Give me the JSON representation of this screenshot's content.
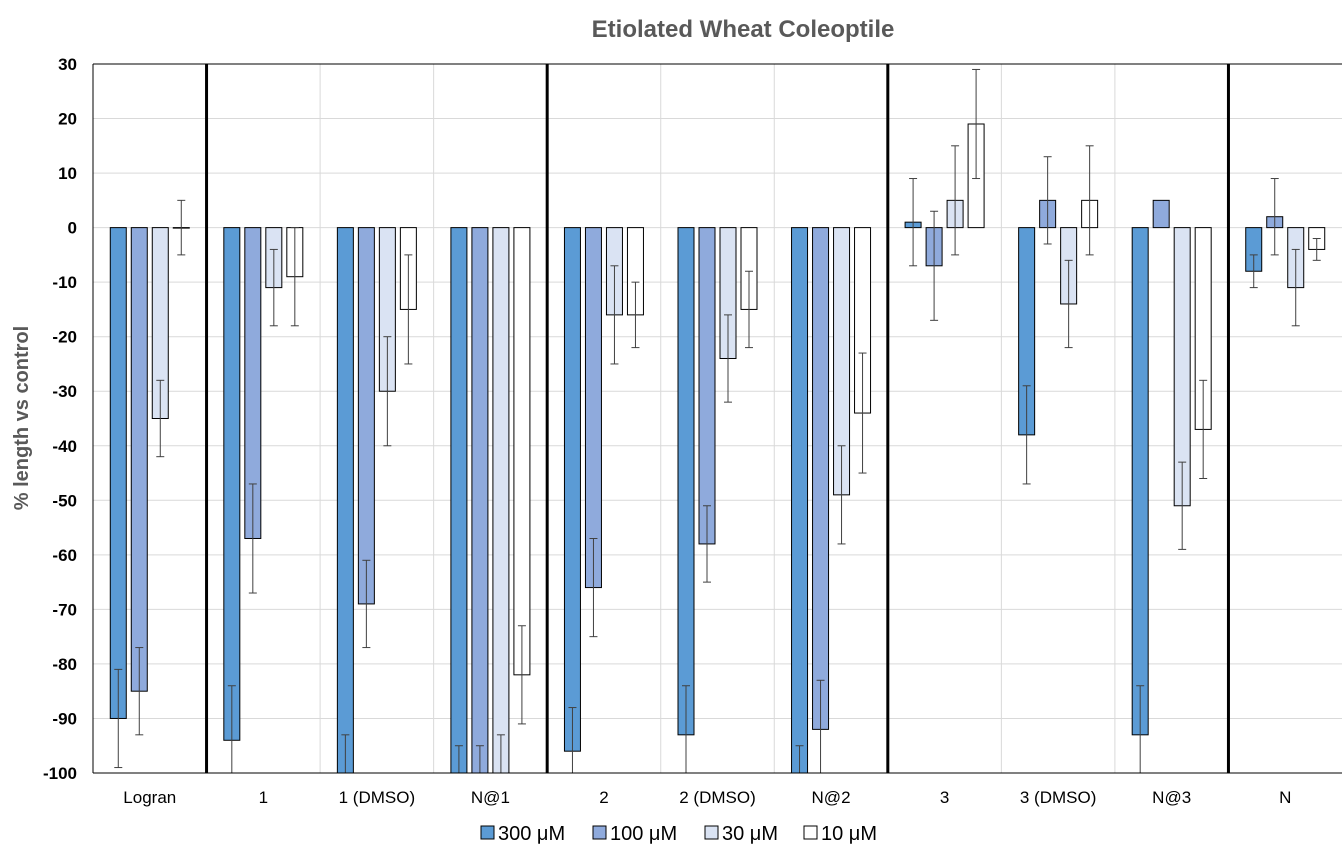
{
  "chart_data": {
    "type": "bar",
    "title": "Etiolated Wheat Coleoptile",
    "xlabel": "",
    "ylabel": "% length vs control",
    "ylim": [
      -100,
      30
    ],
    "yticks": [
      30,
      20,
      10,
      0,
      -10,
      -20,
      -30,
      -40,
      -50,
      -60,
      -70,
      -80,
      -90,
      -100
    ],
    "grid": true,
    "legend_position": "bottom",
    "categories": [
      "Logran",
      "1",
      "1 (DMSO)",
      "N@1",
      "2",
      "2 (DMSO)",
      "N@2",
      "3",
      "3 (DMSO)",
      "N@3",
      "N"
    ],
    "group_separators_after": [
      "Logran",
      "N@1",
      "N@2",
      "N@3"
    ],
    "series": [
      {
        "name": "300 μM",
        "color": "#5b9bd5",
        "values": [
          -90,
          -94,
          -100,
          -100,
          -96,
          -93,
          -100,
          1,
          -38,
          -93,
          -8
        ],
        "errors": [
          9,
          10,
          7,
          5,
          8,
          9,
          5,
          8,
          9,
          9,
          3
        ]
      },
      {
        "name": "100 μM",
        "color": "#8faadc",
        "values": [
          -85,
          -57,
          -69,
          -100,
          -66,
          -58,
          -92,
          -7,
          5,
          5,
          2
        ],
        "errors": [
          8,
          10,
          8,
          5,
          9,
          7,
          9,
          10,
          8,
          0,
          7
        ]
      },
      {
        "name": "30 μM",
        "color": "#dae3f3",
        "values": [
          -35,
          -11,
          -30,
          -100,
          -16,
          -24,
          -49,
          5,
          -14,
          -51,
          -11
        ],
        "errors": [
          7,
          7,
          10,
          7,
          9,
          8,
          9,
          10,
          8,
          8,
          7
        ]
      },
      {
        "name": "10 μM",
        "color": "#ffffff",
        "values": [
          0,
          -9,
          -15,
          -82,
          -16,
          -15,
          -34,
          19,
          5,
          -37,
          -4
        ],
        "errors": [
          5,
          9,
          10,
          9,
          6,
          7,
          11,
          10,
          10,
          9,
          2
        ]
      }
    ]
  }
}
